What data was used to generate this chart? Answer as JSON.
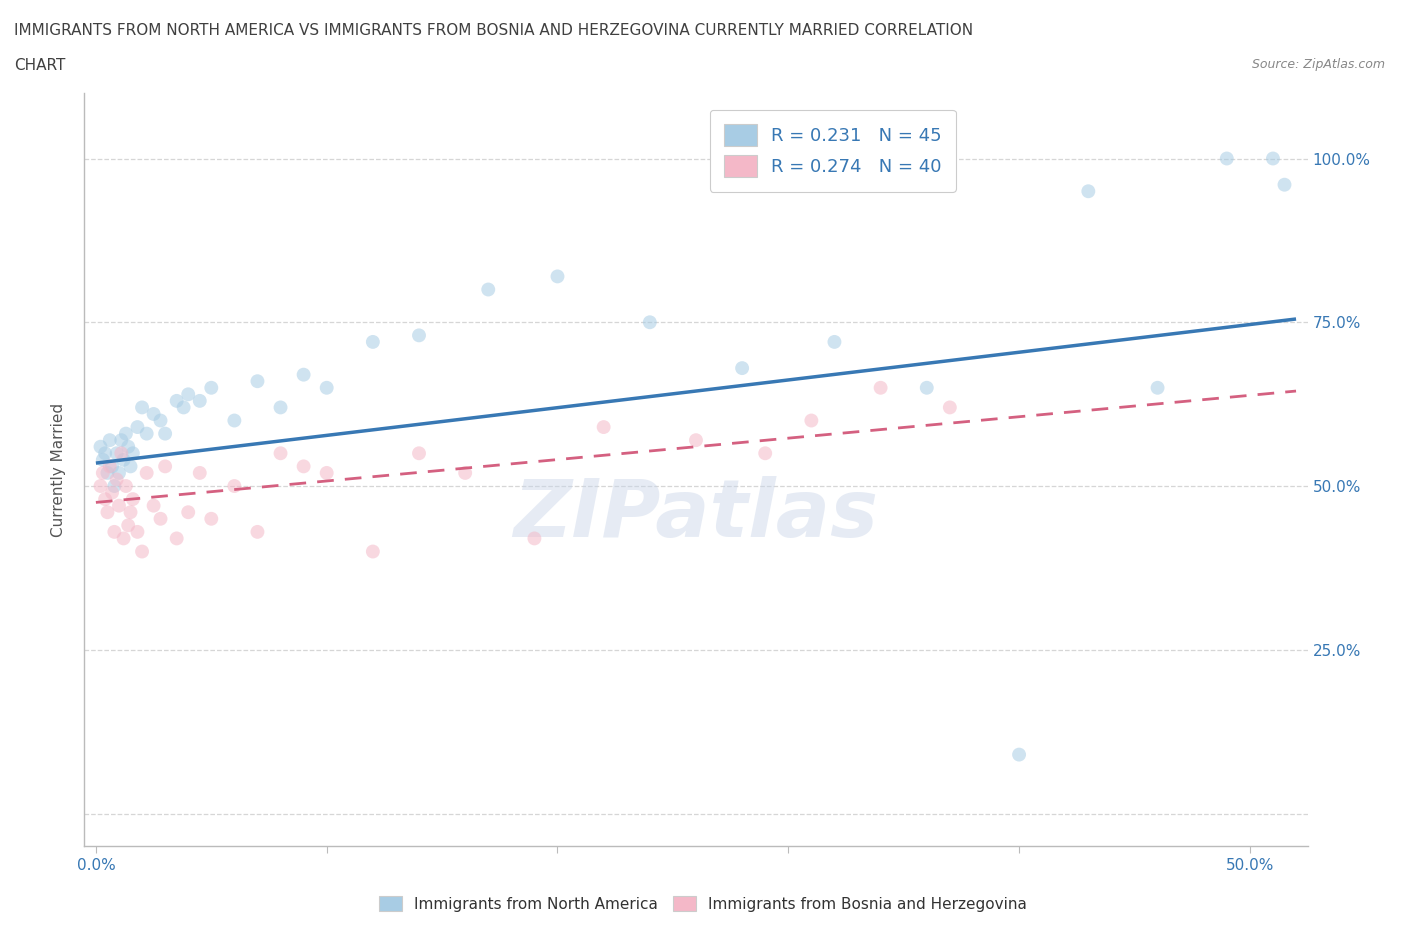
{
  "title_line1": "IMMIGRANTS FROM NORTH AMERICA VS IMMIGRANTS FROM BOSNIA AND HERZEGOVINA CURRENTLY MARRIED CORRELATION",
  "title_line2": "CHART",
  "source": "Source: ZipAtlas.com",
  "ylabel": "Currently Married",
  "x_ticks": [
    0.0,
    0.1,
    0.2,
    0.3,
    0.4,
    0.5
  ],
  "x_tick_labels": [
    "0.0%",
    "",
    "",
    "",
    "",
    "50.0%"
  ],
  "y_ticks": [
    0.0,
    0.25,
    0.5,
    0.75,
    1.0
  ],
  "y_tick_labels": [
    "",
    "25.0%",
    "50.0%",
    "75.0%",
    "100.0%"
  ],
  "xlim": [
    -0.005,
    0.525
  ],
  "ylim": [
    -0.05,
    1.1
  ],
  "legend_labels": [
    "Immigrants from North America",
    "Immigrants from Bosnia and Herzegovina"
  ],
  "legend_r_n": [
    "R = 0.231   N = 45",
    "R = 0.274   N = 40"
  ],
  "blue_color": "#a8cce4",
  "pink_color": "#f4b8c8",
  "blue_line_color": "#3878b4",
  "pink_line_color": "#d46080",
  "background_color": "#ffffff",
  "grid_color": "#cccccc",
  "title_color": "#404040",
  "axis_color": "#bbbbbb",
  "scatter_alpha": 0.55,
  "scatter_size": 100,
  "blue_x": [
    0.002,
    0.003,
    0.004,
    0.005,
    0.006,
    0.007,
    0.008,
    0.009,
    0.01,
    0.011,
    0.012,
    0.013,
    0.014,
    0.015,
    0.016,
    0.018,
    0.02,
    0.022,
    0.025,
    0.028,
    0.03,
    0.035,
    0.038,
    0.04,
    0.045,
    0.05,
    0.06,
    0.07,
    0.08,
    0.09,
    0.1,
    0.12,
    0.14,
    0.17,
    0.2,
    0.24,
    0.28,
    0.32,
    0.36,
    0.4,
    0.43,
    0.46,
    0.49,
    0.51,
    0.515
  ],
  "blue_y": [
    0.56,
    0.54,
    0.55,
    0.52,
    0.57,
    0.53,
    0.5,
    0.55,
    0.52,
    0.57,
    0.54,
    0.58,
    0.56,
    0.53,
    0.55,
    0.59,
    0.62,
    0.58,
    0.61,
    0.6,
    0.58,
    0.63,
    0.62,
    0.64,
    0.63,
    0.65,
    0.6,
    0.66,
    0.62,
    0.67,
    0.65,
    0.72,
    0.73,
    0.8,
    0.82,
    0.75,
    0.68,
    0.72,
    0.65,
    0.09,
    0.95,
    0.65,
    1.0,
    1.0,
    0.96
  ],
  "pink_x": [
    0.002,
    0.003,
    0.004,
    0.005,
    0.006,
    0.007,
    0.008,
    0.009,
    0.01,
    0.011,
    0.012,
    0.013,
    0.014,
    0.015,
    0.016,
    0.018,
    0.02,
    0.022,
    0.025,
    0.028,
    0.03,
    0.035,
    0.04,
    0.045,
    0.05,
    0.06,
    0.07,
    0.08,
    0.09,
    0.1,
    0.12,
    0.14,
    0.16,
    0.19,
    0.22,
    0.26,
    0.29,
    0.31,
    0.34,
    0.37
  ],
  "pink_y": [
    0.5,
    0.52,
    0.48,
    0.46,
    0.53,
    0.49,
    0.43,
    0.51,
    0.47,
    0.55,
    0.42,
    0.5,
    0.44,
    0.46,
    0.48,
    0.43,
    0.4,
    0.52,
    0.47,
    0.45,
    0.53,
    0.42,
    0.46,
    0.52,
    0.45,
    0.5,
    0.43,
    0.55,
    0.53,
    0.52,
    0.4,
    0.55,
    0.52,
    0.42,
    0.59,
    0.57,
    0.55,
    0.6,
    0.65,
    0.62
  ],
  "blue_trendline_x": [
    0.0,
    0.52
  ],
  "blue_trendline_y": [
    0.535,
    0.755
  ],
  "pink_trendline_x": [
    0.0,
    0.52
  ],
  "pink_trendline_y": [
    0.475,
    0.645
  ],
  "watermark": "ZIPatlas",
  "watermark_color": "#c8d4e8",
  "watermark_alpha": 0.45,
  "watermark_fontsize": 58
}
